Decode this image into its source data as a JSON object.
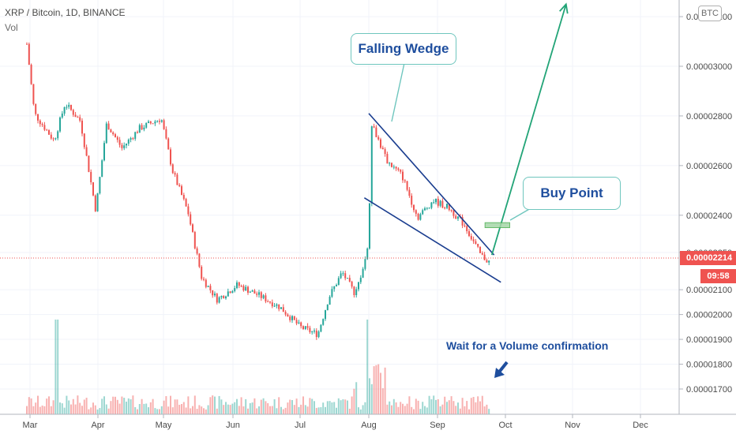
{
  "header": {
    "symbol_line": "XRP / Bitcoin, 1D, BINANCE",
    "volume_label": "Vol"
  },
  "currency_badge": "BTC",
  "last_price": "0.00002214",
  "countdown": "09:58",
  "annotations": {
    "pattern_label": "Falling Wedge",
    "buy_label": "Buy Point",
    "volume_note": "Wait for a Volume confirmation"
  },
  "colors": {
    "up": "#26a69a",
    "down": "#ef5350",
    "wedge_line": "#1a3d8f",
    "target_arrow": "#22a477",
    "callout_border": "#6fc6be",
    "annotation_text": "#1e4e9e"
  },
  "chart_data": {
    "type": "candlestick",
    "title": "XRP / Bitcoin, 1D, BINANCE",
    "x_axis": {
      "tick_labels": [
        "Mar",
        "Apr",
        "May",
        "Jun",
        "Jul",
        "Aug",
        "Sep",
        "Oct",
        "Nov",
        "Dec"
      ]
    },
    "y_axis": {
      "tick_labels": [
        "0.00001700",
        "0.00001800",
        "0.00001900",
        "0.00002000",
        "0.00002100",
        "0.00002250",
        "0.00002400",
        "0.00002600",
        "0.00002800",
        "0.00003000",
        "0.00003200"
      ],
      "ylim": [
        1.66e-05,
        3.25e-05
      ]
    },
    "price_path": [
      [
        "Feb 25",
        3.09e-05
      ],
      [
        "Mar 3",
        2.81e-05
      ],
      [
        "Mar 12",
        2.7e-05
      ],
      [
        "Mar 17",
        2.85e-05
      ],
      [
        "Mar 24",
        2.78e-05
      ],
      [
        "Mar 31",
        2.42e-05
      ],
      [
        "Apr 5",
        2.77e-05
      ],
      [
        "Apr 12",
        2.67e-05
      ],
      [
        "Apr 20",
        2.75e-05
      ],
      [
        "Apr 30",
        2.79e-05
      ],
      [
        "May 5",
        2.58e-05
      ],
      [
        "May 12",
        2.41e-05
      ],
      [
        "May 18",
        2.15e-05
      ],
      [
        "May 25",
        2.06e-05
      ],
      [
        "Jun 3",
        2.12e-05
      ],
      [
        "Jun 12",
        2.08e-05
      ],
      [
        "Jun 22",
        2.03e-05
      ],
      [
        "Jul 1",
        1.95e-05
      ],
      [
        "Jul 9",
        1.92e-05
      ],
      [
        "Jul 14",
        2.07e-05
      ],
      [
        "Jul 20",
        2.17e-05
      ],
      [
        "Jul 26",
        2.08e-05
      ],
      [
        "Aug 1",
        2.28e-05
      ],
      [
        "Aug 2",
        2.78e-05
      ],
      [
        "Aug 9",
        2.62e-05
      ],
      [
        "Aug 16",
        2.56e-05
      ],
      [
        "Aug 23",
        2.39e-05
      ],
      [
        "Aug 30",
        2.46e-05
      ],
      [
        "Sep 6",
        2.43e-05
      ],
      [
        "Sep 13",
        2.36e-05
      ],
      [
        "Sep 20",
        2.24e-05
      ],
      [
        "Sep 24",
        2.21e-05
      ]
    ],
    "volume_profile": [
      [
        "Mar",
        "low"
      ],
      [
        "Mar 13",
        "spike"
      ],
      [
        "Jul 26",
        "moderate"
      ],
      [
        "Aug 1",
        "spike"
      ],
      [
        "Aug 5",
        "high"
      ],
      [
        "Sep 24",
        "low"
      ]
    ],
    "drawings": {
      "wedge_upper_line": [
        [
          "Aug 1",
          2.81e-05
        ],
        [
          "Sep 26",
          2.24e-05
        ]
      ],
      "wedge_lower_line": [
        [
          "Jul 30",
          2.47e-05
        ],
        [
          "Sep 29",
          2.13e-05
        ]
      ],
      "target_arrow": [
        [
          "Sep 25",
          2.24e-05
        ],
        [
          "Oct 29",
          3.25e-05
        ]
      ],
      "buy_zone": {
        "from": "Sep 22",
        "to": "Oct 3",
        "price_low": 2.35e-05,
        "price_high": 2.37e-05
      }
    }
  }
}
